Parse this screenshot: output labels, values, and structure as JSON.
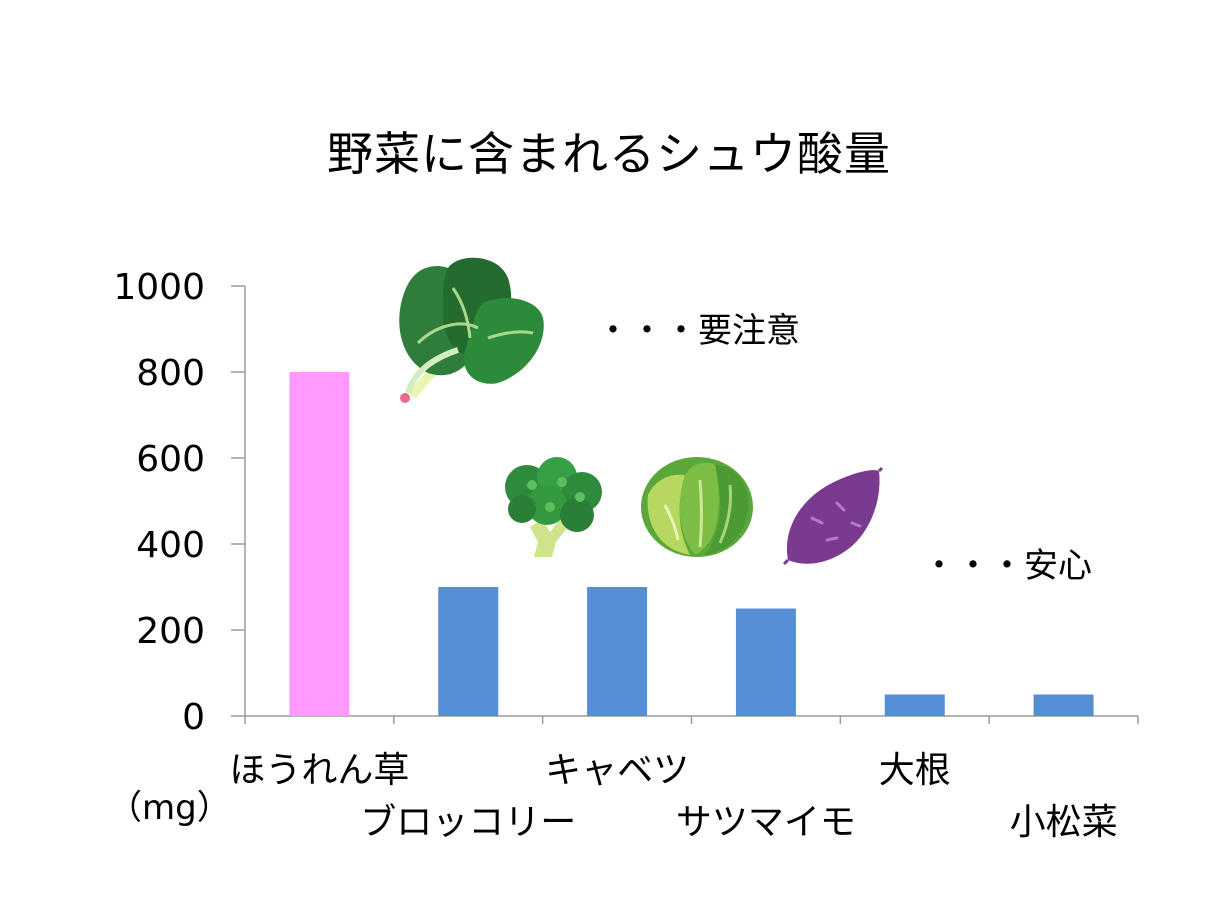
{
  "chart_data": {
    "type": "bar",
    "title": "野菜に含まれるシュウ酸量",
    "unit_label": "（mg）",
    "categories": [
      "ほうれん草",
      "ブロッコリー",
      "キャベツ",
      "サツマイモ",
      "大根",
      "小松菜"
    ],
    "values": [
      800,
      300,
      300,
      250,
      50,
      50
    ],
    "ylim": [
      0,
      1000
    ],
    "yticks": [
      "0",
      "200",
      "400",
      "600",
      "800",
      "1000"
    ],
    "bar_colors": [
      "#ff99ff",
      "#558ed5",
      "#558ed5",
      "#558ed5",
      "#558ed5",
      "#558ed5"
    ],
    "grid": false,
    "annotations": {
      "caution": "・・・要注意",
      "safe": "・・・安心"
    },
    "illustrations": [
      "spinach-icon",
      "broccoli-icon",
      "cabbage-icon",
      "sweet-potato-icon"
    ]
  }
}
